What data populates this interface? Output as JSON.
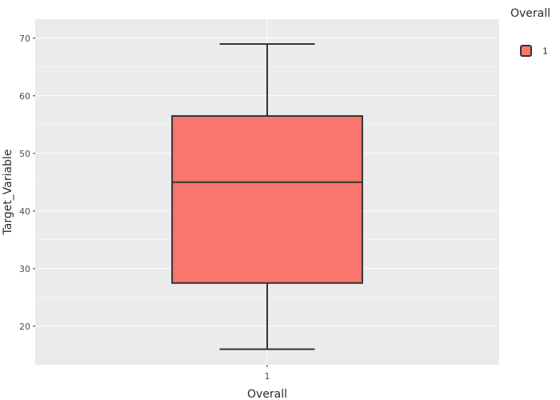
{
  "chart_data": {
    "type": "boxplot",
    "title": "",
    "xlabel": "Overall",
    "ylabel": "Target_Variable",
    "categories": [
      "1"
    ],
    "boxes": [
      {
        "category": "1",
        "min": 16,
        "q1": 27.5,
        "median": 45,
        "q3": 56.5,
        "max": 69
      }
    ],
    "ylim": [
      13.3,
      73.3
    ],
    "yticks": [
      20,
      30,
      40,
      50,
      60,
      70
    ],
    "grid": true,
    "legend": {
      "title": "Overall",
      "entries": [
        "1"
      ],
      "placement": "right"
    },
    "colors": {
      "fill": "#F8766D",
      "stroke": "#333333",
      "panel": "#EBEBEB",
      "grid": "#FFFFFF"
    }
  }
}
